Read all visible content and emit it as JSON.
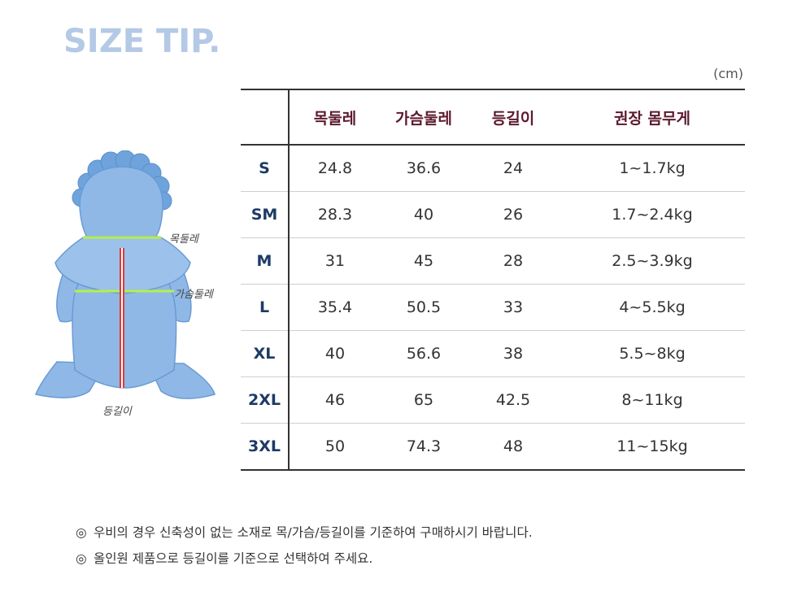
{
  "title": "SIZE TIP.",
  "unit": "(cm)",
  "colors": {
    "title": "#b3c9e6",
    "header_text": "#5c1a2e",
    "size_text": "#1e3a66",
    "garment_fill": "#8fb8e6",
    "garment_stroke": "#6a9bd4",
    "measure_green": "#b6f04a",
    "measure_red": "#e03a3a"
  },
  "figure": {
    "labels": {
      "neck": "목둘레",
      "chest": "가슴둘레",
      "back": "등길이"
    }
  },
  "table": {
    "headers": [
      "목둘레",
      "가슴둘레",
      "등길이",
      "권장 몸무게"
    ],
    "rows": [
      {
        "size": "S",
        "neck": "24.8",
        "chest": "36.6",
        "back": "24",
        "weight": "1~1.7kg"
      },
      {
        "size": "SM",
        "neck": "28.3",
        "chest": "40",
        "back": "26",
        "weight": "1.7~2.4kg"
      },
      {
        "size": "M",
        "neck": "31",
        "chest": "45",
        "back": "28",
        "weight": "2.5~3.9kg"
      },
      {
        "size": "L",
        "neck": "35.4",
        "chest": "50.5",
        "back": "33",
        "weight": "4~5.5kg"
      },
      {
        "size": "XL",
        "neck": "40",
        "chest": "56.6",
        "back": "38",
        "weight": "5.5~8kg"
      },
      {
        "size": "2XL",
        "neck": "46",
        "chest": "65",
        "back": "42.5",
        "weight": "8~11kg"
      },
      {
        "size": "3XL",
        "neck": "50",
        "chest": "74.3",
        "back": "48",
        "weight": "11~15kg"
      }
    ]
  },
  "notes": [
    {
      "bullet": "◎",
      "text": "우비의 경우 신축성이 없는 소재로 목/가슴/등길이를 기준하여 구매하시기 바랍니다."
    },
    {
      "bullet": "◎",
      "text": "올인원 제품으로 등길이를 기준으로 선택하여 주세요."
    }
  ]
}
